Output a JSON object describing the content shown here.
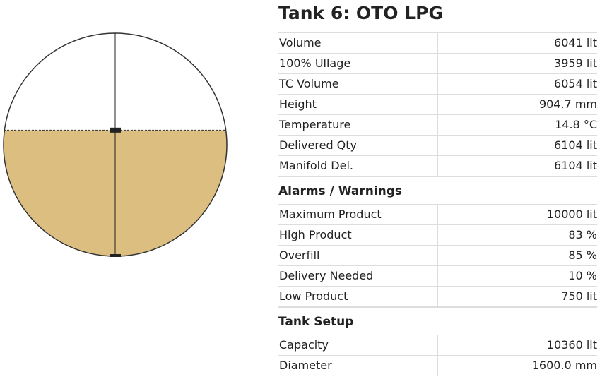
{
  "title": "Tank 6: OTO LPG",
  "sections": [
    {
      "rows": [
        [
          "Volume",
          "6041 lit"
        ],
        [
          "100% Ullage",
          "3959 lit"
        ],
        [
          "TC Volume",
          "6054 lit"
        ],
        [
          "Height",
          "904.7 mm"
        ],
        [
          "Temperature",
          "14.8 °C"
        ],
        [
          "Delivered Qty",
          "6104 lit"
        ],
        [
          "Manifold Del.",
          "6104 lit"
        ]
      ]
    },
    {
      "heading": "Alarms / Warnings",
      "rows": [
        [
          "Maximum Product",
          "10000 lit"
        ],
        [
          "High Product",
          "83 %"
        ],
        [
          "Overfill",
          "85 %"
        ],
        [
          "Delivery Needed",
          "10 %"
        ],
        [
          "Low Product",
          "750 lit"
        ]
      ]
    },
    {
      "heading": "Tank Setup",
      "rows": [
        [
          "Capacity",
          "10360 lit"
        ],
        [
          "Diameter",
          "1600.0 mm"
        ]
      ]
    }
  ]
}
